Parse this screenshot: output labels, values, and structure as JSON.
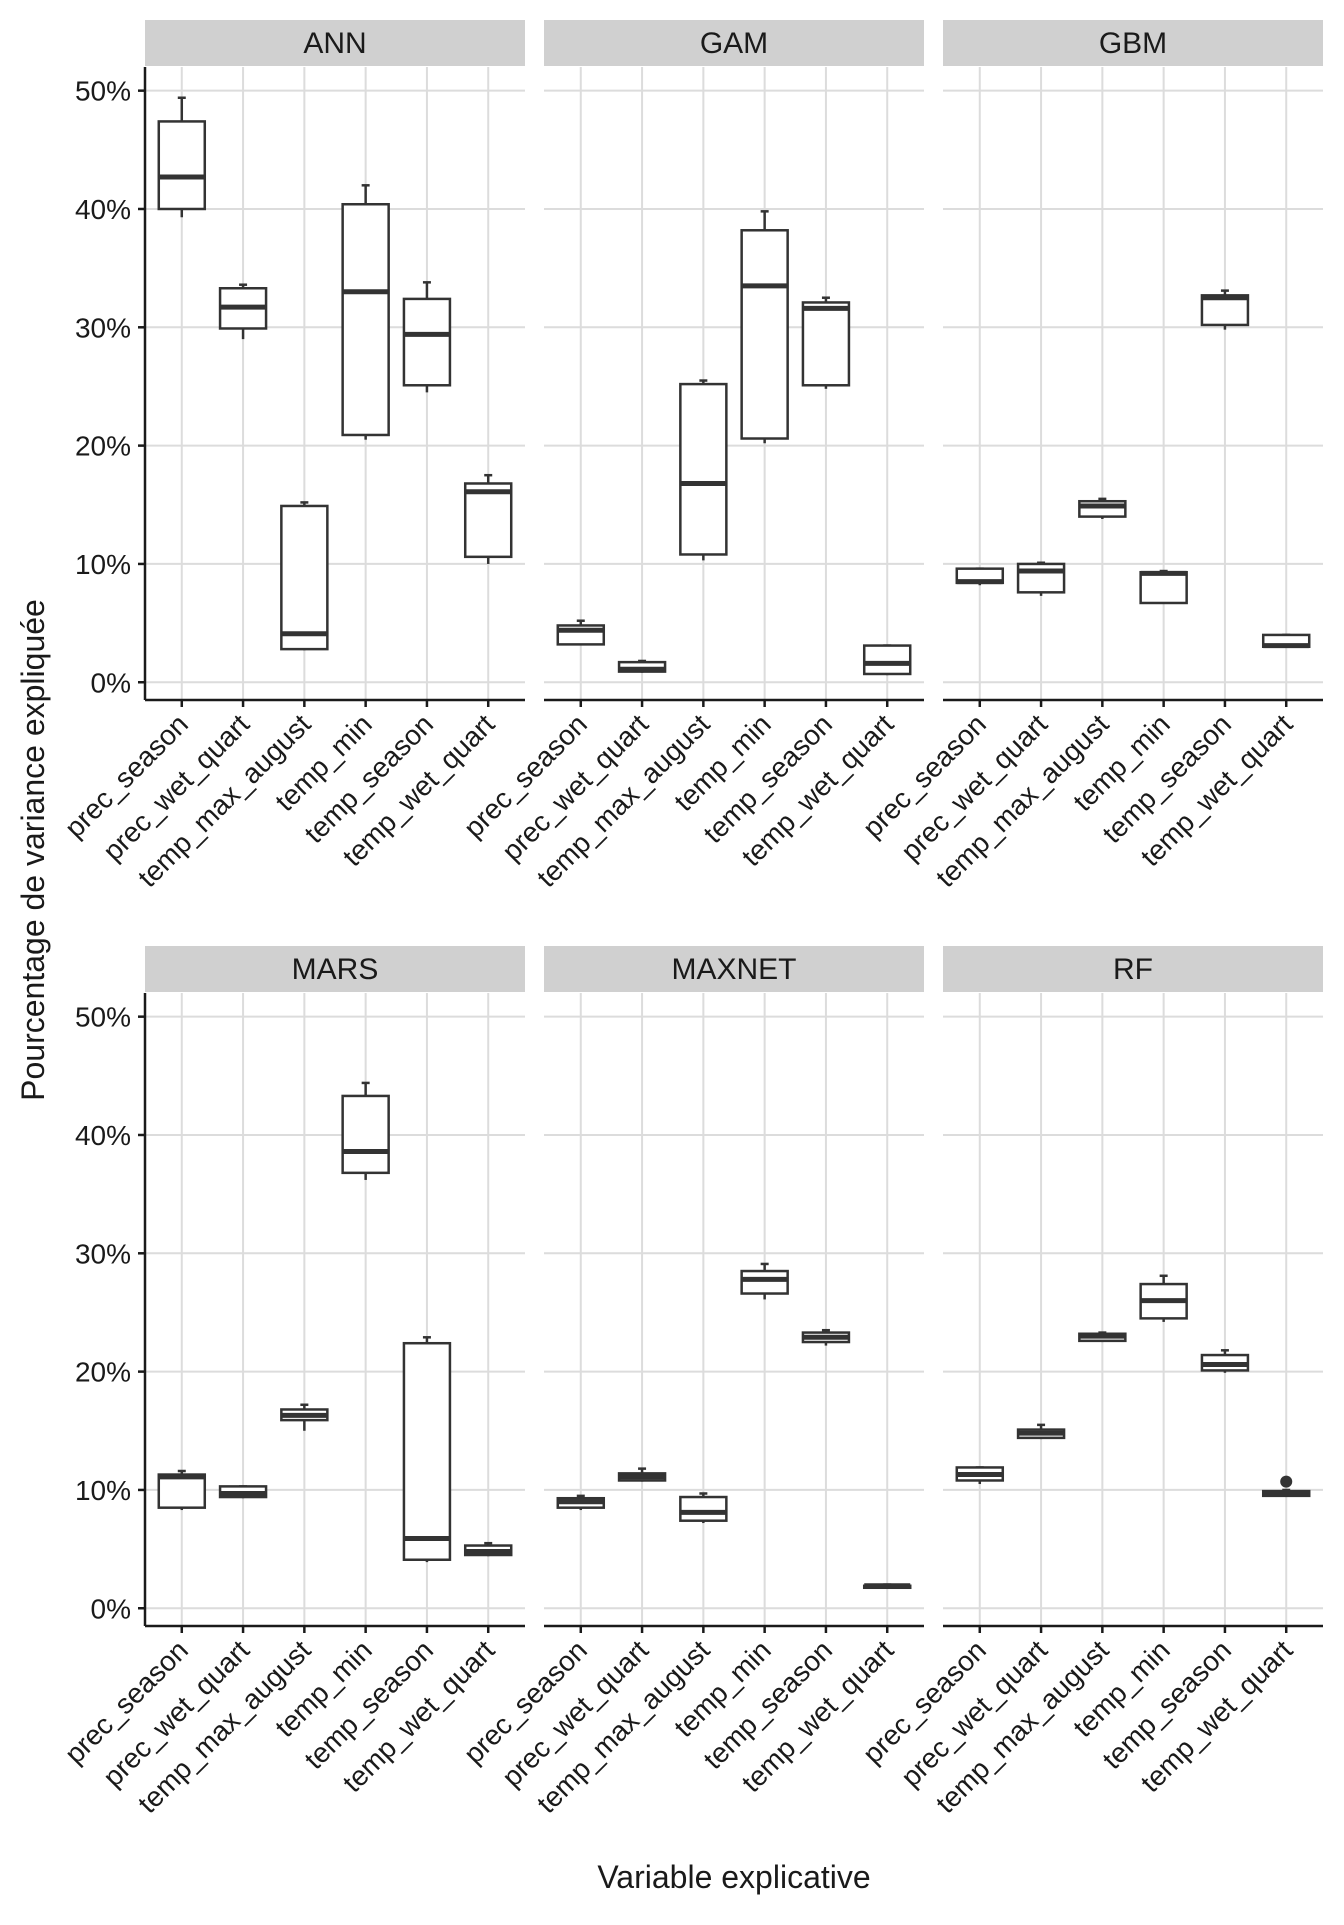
{
  "chart_data": {
    "type": "boxplot",
    "xlabel": "Variable explicative",
    "ylabel": "Pourcentage de variance expliquée",
    "ylim": [
      -1.5,
      52
    ],
    "yticks": [
      0,
      10,
      20,
      30,
      40,
      50
    ],
    "ytick_labels": [
      "0%",
      "10%",
      "20%",
      "30%",
      "40%",
      "50%"
    ],
    "categories": [
      "prec_season",
      "prec_wet_quart",
      "temp_max_august",
      "temp_min",
      "temp_season",
      "temp_wet_quart"
    ],
    "panels": [
      {
        "name": "ANN",
        "boxes": [
          {
            "min": 39.3,
            "q1": 40.0,
            "median": 42.7,
            "q3": 47.4,
            "max": 49.4,
            "outliers": []
          },
          {
            "min": 29.0,
            "q1": 29.9,
            "median": 31.7,
            "q3": 33.3,
            "max": 33.6,
            "outliers": []
          },
          {
            "min": 2.7,
            "q1": 2.8,
            "median": 4.1,
            "q3": 14.9,
            "max": 15.2,
            "outliers": []
          },
          {
            "min": 20.5,
            "q1": 20.9,
            "median": 33.0,
            "q3": 40.4,
            "max": 42.0,
            "outliers": []
          },
          {
            "min": 24.5,
            "q1": 25.1,
            "median": 29.4,
            "q3": 32.4,
            "max": 33.8,
            "outliers": []
          },
          {
            "min": 10.0,
            "q1": 10.6,
            "median": 16.1,
            "q3": 16.8,
            "max": 17.5,
            "outliers": []
          }
        ]
      },
      {
        "name": "GAM",
        "boxes": [
          {
            "min": 3.2,
            "q1": 3.2,
            "median": 4.4,
            "q3": 4.8,
            "max": 5.2,
            "outliers": []
          },
          {
            "min": 0.8,
            "q1": 0.9,
            "median": 1.1,
            "q3": 1.7,
            "max": 1.8,
            "outliers": []
          },
          {
            "min": 10.3,
            "q1": 10.8,
            "median": 16.8,
            "q3": 25.2,
            "max": 25.5,
            "outliers": []
          },
          {
            "min": 20.2,
            "q1": 20.6,
            "median": 33.5,
            "q3": 38.2,
            "max": 39.8,
            "outliers": []
          },
          {
            "min": 24.8,
            "q1": 25.1,
            "median": 31.6,
            "q3": 32.1,
            "max": 32.5,
            "outliers": []
          },
          {
            "min": 0.6,
            "q1": 0.7,
            "median": 1.6,
            "q3": 3.1,
            "max": 3.1,
            "outliers": []
          }
        ]
      },
      {
        "name": "GBM",
        "boxes": [
          {
            "min": 8.2,
            "q1": 8.4,
            "median": 8.5,
            "q3": 9.6,
            "max": 9.6,
            "outliers": []
          },
          {
            "min": 7.3,
            "q1": 7.6,
            "median": 9.4,
            "q3": 10.0,
            "max": 10.1,
            "outliers": []
          },
          {
            "min": 13.8,
            "q1": 14.0,
            "median": 14.9,
            "q3": 15.3,
            "max": 15.5,
            "outliers": []
          },
          {
            "min": 6.7,
            "q1": 6.7,
            "median": 9.2,
            "q3": 9.3,
            "max": 9.4,
            "outliers": []
          },
          {
            "min": 29.8,
            "q1": 30.2,
            "median": 32.5,
            "q3": 32.7,
            "max": 33.1,
            "outliers": []
          },
          {
            "min": 2.9,
            "q1": 3.0,
            "median": 3.1,
            "q3": 4.0,
            "max": 4.0,
            "outliers": []
          }
        ]
      },
      {
        "name": "MARS",
        "boxes": [
          {
            "min": 8.3,
            "q1": 8.5,
            "median": 11.1,
            "q3": 11.3,
            "max": 11.6,
            "outliers": []
          },
          {
            "min": 9.3,
            "q1": 9.4,
            "median": 9.7,
            "q3": 10.3,
            "max": 10.3,
            "outliers": []
          },
          {
            "min": 15.0,
            "q1": 15.9,
            "median": 16.3,
            "q3": 16.8,
            "max": 17.2,
            "outliers": []
          },
          {
            "min": 36.2,
            "q1": 36.8,
            "median": 38.6,
            "q3": 43.3,
            "max": 44.4,
            "outliers": []
          },
          {
            "min": 3.9,
            "q1": 4.1,
            "median": 5.9,
            "q3": 22.4,
            "max": 22.9,
            "outliers": []
          },
          {
            "min": 4.4,
            "q1": 4.5,
            "median": 4.8,
            "q3": 5.3,
            "max": 5.5,
            "outliers": []
          }
        ]
      },
      {
        "name": "MAXNET",
        "boxes": [
          {
            "min": 8.3,
            "q1": 8.5,
            "median": 9.0,
            "q3": 9.3,
            "max": 9.5,
            "outliers": []
          },
          {
            "min": 10.7,
            "q1": 10.8,
            "median": 11.1,
            "q3": 11.4,
            "max": 11.8,
            "outliers": []
          },
          {
            "min": 7.2,
            "q1": 7.4,
            "median": 8.1,
            "q3": 9.4,
            "max": 9.7,
            "outliers": []
          },
          {
            "min": 26.1,
            "q1": 26.6,
            "median": 27.8,
            "q3": 28.5,
            "max": 29.1,
            "outliers": []
          },
          {
            "min": 22.2,
            "q1": 22.5,
            "median": 22.9,
            "q3": 23.3,
            "max": 23.5,
            "outliers": []
          },
          {
            "min": 1.8,
            "q1": 1.8,
            "median": 1.9,
            "q3": 1.9,
            "max": 2.0,
            "outliers": []
          }
        ]
      },
      {
        "name": "RF",
        "boxes": [
          {
            "min": 10.5,
            "q1": 10.8,
            "median": 11.3,
            "q3": 11.9,
            "max": 11.9,
            "outliers": []
          },
          {
            "min": 14.3,
            "q1": 14.4,
            "median": 14.8,
            "q3": 15.1,
            "max": 15.5,
            "outliers": []
          },
          {
            "min": 22.5,
            "q1": 22.6,
            "median": 23.0,
            "q3": 23.2,
            "max": 23.3,
            "outliers": []
          },
          {
            "min": 24.2,
            "q1": 24.5,
            "median": 26.0,
            "q3": 27.4,
            "max": 28.1,
            "outliers": []
          },
          {
            "min": 19.9,
            "q1": 20.1,
            "median": 20.6,
            "q3": 21.4,
            "max": 21.8,
            "outliers": []
          },
          {
            "min": 9.4,
            "q1": 9.5,
            "median": 9.7,
            "q3": 9.9,
            "max": 10.0,
            "outliers": [
              10.7
            ]
          }
        ]
      }
    ]
  }
}
